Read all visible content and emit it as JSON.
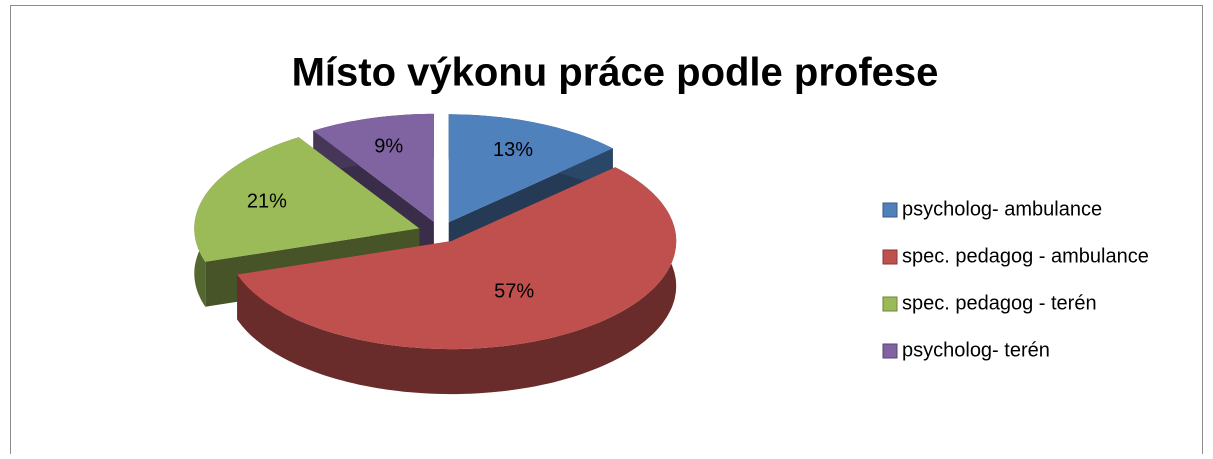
{
  "chart_data": {
    "type": "pie3d",
    "title": "Místo výkonu práce podle profese",
    "categories": [
      "psycholog- ambulance",
      "spec. pedagog - ambulance",
      "spec. pedagog - terén",
      "psycholog- terén"
    ],
    "values": [
      13,
      57,
      21,
      9
    ],
    "value_labels": [
      "13%",
      "57%",
      "21%",
      "9%"
    ],
    "colors": [
      "#4f81bd",
      "#c0504d",
      "#9bbb59",
      "#8064a2"
    ],
    "legend": "right"
  }
}
